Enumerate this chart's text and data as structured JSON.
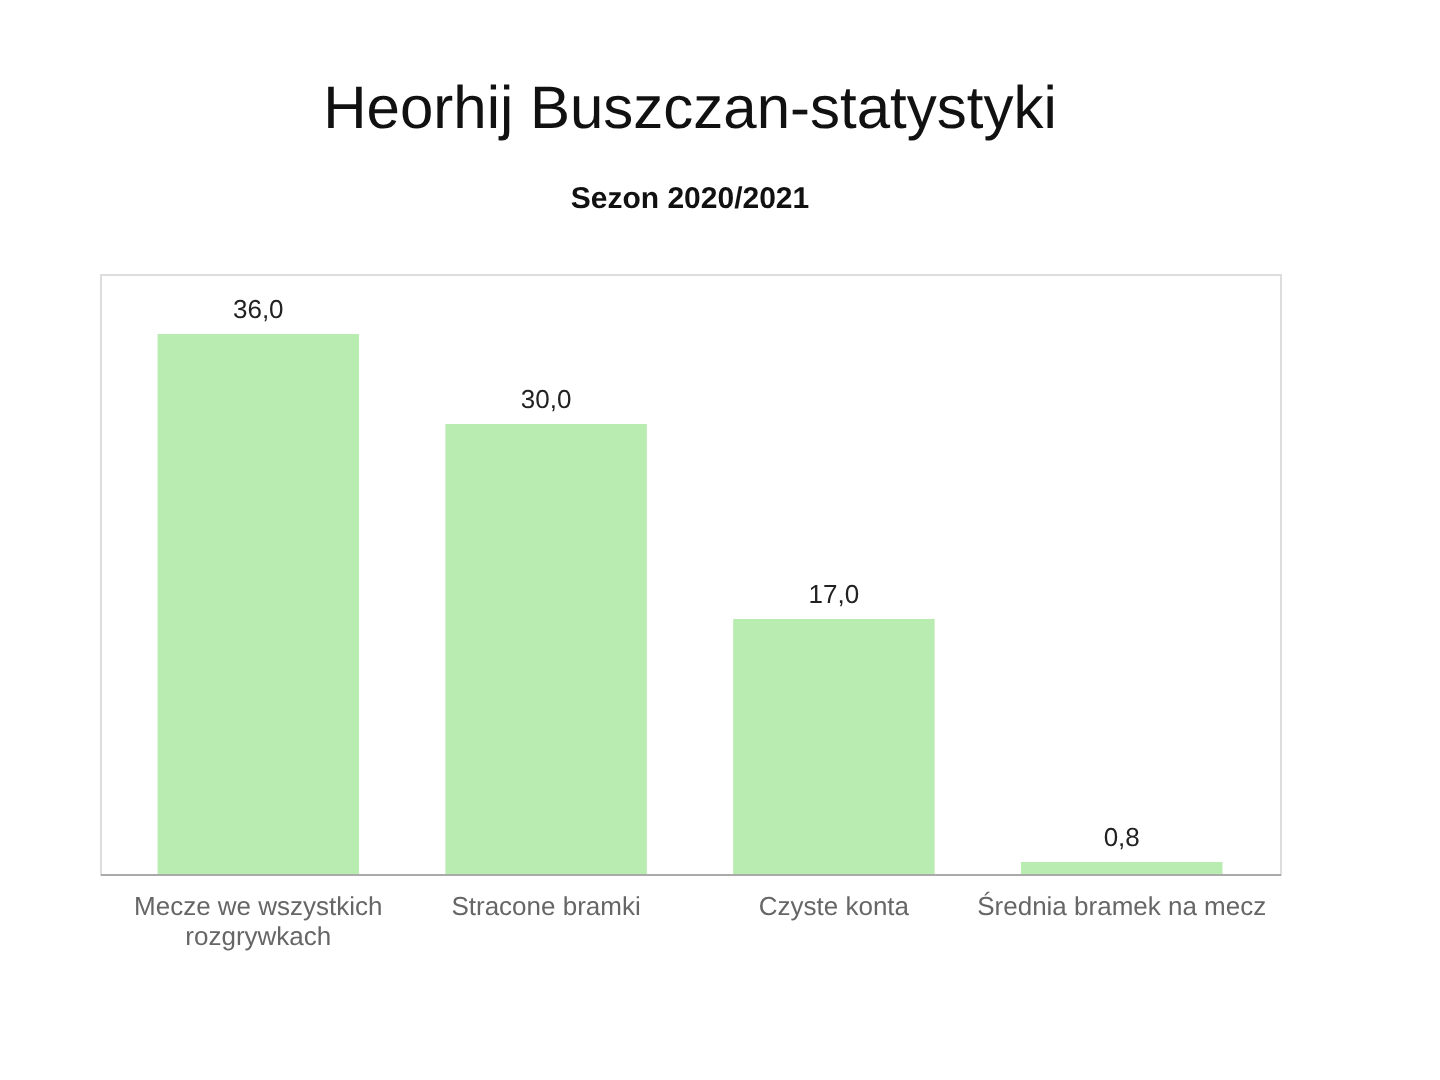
{
  "chart_data": {
    "type": "bar",
    "title": "Heorhij Buszczan-statystyki",
    "subtitle": "Sezon 2020/2021",
    "categories": [
      "Mecze we wszystkich rozgrywkach",
      "Stracone bramki",
      "Czyste konta",
      "Średnia bramek na mecz"
    ],
    "values": [
      36,
      30,
      17,
      0.8
    ],
    "value_labels": [
      "36,0",
      "30,0",
      "17,0",
      "0,8"
    ],
    "color": "#b9ecb0",
    "ylim": [
      0,
      40
    ],
    "tick_labels": "x",
    "grid": false
  }
}
